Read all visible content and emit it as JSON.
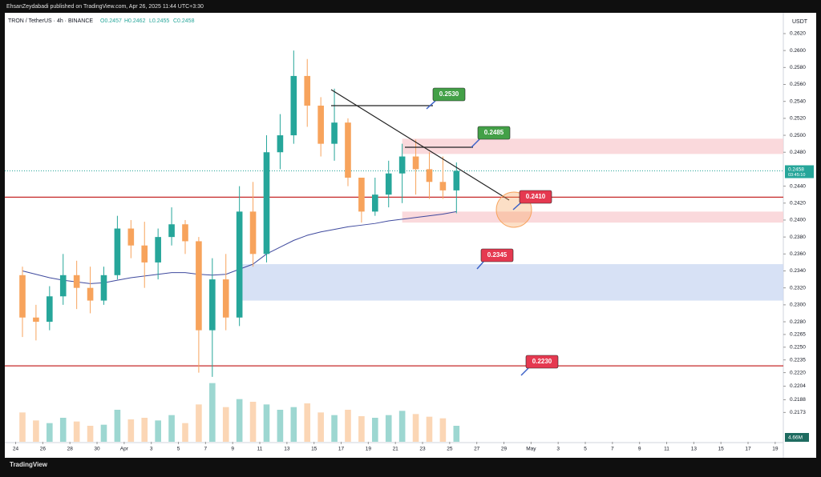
{
  "header": {
    "publisher": "EhsanZeydabadi published on TradingView.com, Apr 26, 2025 11:44 UTC+3:30",
    "brand": "TradingView"
  },
  "chart_data": {
    "type": "candlestick",
    "symbol": "TRON / TetherUS · 4h · BINANCE",
    "ohlc_legend": [
      "O0.2457",
      "H0.2462",
      "L0.2455",
      "C0.2458"
    ],
    "currency": "USDT",
    "t": [
      0,
      1,
      2,
      3,
      4,
      5,
      6,
      7,
      8,
      9,
      10,
      11,
      12,
      13,
      14,
      15,
      16,
      17,
      18,
      19,
      20,
      21,
      22,
      23,
      24,
      25,
      26,
      27,
      28,
      29,
      30,
      31,
      32
    ],
    "open": [
      0.2335,
      0.2285,
      0.228,
      0.231,
      0.2335,
      0.232,
      0.2305,
      0.2335,
      0.239,
      0.237,
      0.235,
      0.238,
      0.2395,
      0.2375,
      0.227,
      0.233,
      0.2285,
      0.241,
      0.236,
      0.248,
      0.25,
      0.257,
      0.2535,
      0.249,
      0.2515,
      0.245,
      0.241,
      0.243,
      0.2455,
      0.2475,
      0.246,
      0.2445,
      0.2435
    ],
    "high": [
      0.2345,
      0.23,
      0.2322,
      0.236,
      0.2352,
      0.2345,
      0.2345,
      0.2405,
      0.24,
      0.2398,
      0.239,
      0.2415,
      0.24,
      0.238,
      0.2355,
      0.236,
      0.244,
      0.2445,
      0.25,
      0.2525,
      0.26,
      0.259,
      0.2545,
      0.2555,
      0.252,
      0.245,
      0.245,
      0.247,
      0.249,
      0.2495,
      0.248,
      0.2475,
      0.2468
    ],
    "low": [
      0.2262,
      0.2258,
      0.227,
      0.23,
      0.2295,
      0.229,
      0.23,
      0.233,
      0.2355,
      0.232,
      0.233,
      0.237,
      0.236,
      0.222,
      0.2215,
      0.227,
      0.2275,
      0.2345,
      0.235,
      0.246,
      0.249,
      0.251,
      0.2475,
      0.247,
      0.244,
      0.2397,
      0.2405,
      0.2415,
      0.242,
      0.243,
      0.2425,
      0.2425,
      0.2408
    ],
    "close": [
      0.2285,
      0.228,
      0.231,
      0.2335,
      0.232,
      0.2305,
      0.2335,
      0.239,
      0.237,
      0.235,
      0.238,
      0.2395,
      0.2375,
      0.227,
      0.233,
      0.2285,
      0.241,
      0.236,
      0.248,
      0.25,
      0.257,
      0.2535,
      0.249,
      0.2515,
      0.245,
      0.241,
      0.243,
      0.2455,
      0.2475,
      0.246,
      0.2445,
      0.2435,
      0.2458
    ],
    "volume": [
      55,
      40,
      35,
      45,
      38,
      30,
      32,
      60,
      42,
      45,
      40,
      50,
      35,
      70,
      110,
      65,
      80,
      75,
      70,
      60,
      65,
      72,
      55,
      50,
      60,
      48,
      45,
      50,
      58,
      52,
      47,
      44,
      30
    ],
    "vlim": [
      0,
      120
    ],
    "ma": [
      0.234,
      0.2336,
      0.2332,
      0.2329,
      0.2327,
      0.2325,
      0.2326,
      0.2329,
      0.2332,
      0.2334,
      0.2336,
      0.2338,
      0.2338,
      0.2336,
      0.2335,
      0.2336,
      0.2342,
      0.2348,
      0.236,
      0.2368,
      0.2376,
      0.2382,
      0.2386,
      0.2389,
      0.2392,
      0.2394,
      0.2396,
      0.2399,
      0.2401,
      0.2403,
      0.2405,
      0.2407,
      0.241
    ],
    "ylim": [
      0.21384,
      0.26313
    ],
    "yticks": [
      {
        "value": 0.262,
        "label": "0.2620"
      },
      {
        "value": 0.26,
        "label": "0.2600"
      },
      {
        "value": 0.258,
        "label": "0.2580"
      },
      {
        "value": 0.256,
        "label": "0.2560"
      },
      {
        "value": 0.254,
        "label": "0.2540"
      },
      {
        "value": 0.252,
        "label": "0.2520"
      },
      {
        "value": 0.25,
        "label": "0.2500"
      },
      {
        "value": 0.248,
        "label": "0.2480"
      },
      {
        "value": 0.244,
        "label": "0.2440"
      },
      {
        "value": 0.242,
        "label": "0.2420"
      },
      {
        "value": 0.24,
        "label": "0.2400"
      },
      {
        "value": 0.238,
        "label": "0.2380"
      },
      {
        "value": 0.236,
        "label": "0.2360"
      },
      {
        "value": 0.234,
        "label": "0.2340"
      },
      {
        "value": 0.232,
        "label": "0.2320"
      },
      {
        "value": 0.23,
        "label": "0.2300"
      },
      {
        "value": 0.228,
        "label": "0.2280"
      },
      0.2265,
      {
        "value": 0.225,
        "label": "0.2250"
      },
      0.2235,
      {
        "value": 0.222,
        "label": "0.2220"
      },
      0.2204,
      0.2188,
      0.2173
    ],
    "xlim": [
      -0.8,
      56.6
    ],
    "xticks": [
      {
        "value": 0,
        "label": "24"
      },
      {
        "value": 2,
        "label": "26"
      },
      {
        "value": 4,
        "label": "28"
      },
      {
        "value": 6,
        "label": "30"
      },
      {
        "value": 8,
        "label": "Apr"
      },
      {
        "value": 10,
        "label": "3"
      },
      {
        "value": 12,
        "label": "5"
      },
      {
        "value": 14,
        "label": "7"
      },
      {
        "value": 16,
        "label": "9"
      },
      {
        "value": 18,
        "label": "11"
      },
      {
        "value": 20,
        "label": "13"
      },
      {
        "value": 22,
        "label": "15"
      },
      {
        "value": 24,
        "label": "17"
      },
      {
        "value": 26,
        "label": "19"
      },
      {
        "value": 28,
        "label": "21"
      },
      {
        "value": 30,
        "label": "23"
      },
      {
        "value": 32,
        "label": "25"
      },
      {
        "value": 34,
        "label": "27"
      },
      {
        "value": 36,
        "label": "29"
      },
      {
        "value": 38,
        "label": "May"
      },
      {
        "value": 40,
        "label": "3"
      },
      {
        "value": 42,
        "label": "5"
      },
      {
        "value": 44,
        "label": "7"
      },
      {
        "value": 46,
        "label": "9"
      },
      {
        "value": 48,
        "label": "11"
      },
      {
        "value": 50,
        "label": "13"
      },
      {
        "value": 52,
        "label": "15"
      },
      {
        "value": 54,
        "label": "17"
      },
      {
        "value": 56,
        "label": "19"
      }
    ],
    "up_color": "#26a69a",
    "down_color": "#f7a35c",
    "ma_color": "#3f4a9e",
    "levels": [
      {
        "value": 0.2427,
        "color": "#c62828"
      },
      {
        "value": 0.2228,
        "color": "#c62828"
      }
    ],
    "zones": [
      {
        "range": [
          0.2478,
          0.2496
        ],
        "color": "#f9cfd3"
      },
      {
        "range": [
          0.2397,
          0.241
        ],
        "color": "#f9cfd3"
      },
      {
        "range": [
          0.2305,
          0.2348
        ],
        "color": "#cdd9f2"
      }
    ],
    "last_price": {
      "value": 0.2458,
      "label": "0.2458",
      "countdown": "03:45:10"
    },
    "last_volume": "4.66M",
    "annotations": [
      {
        "text": "0.2530",
        "color": "#43a047"
      },
      {
        "text": "0.2485",
        "color": "#43a047"
      },
      {
        "text": "0.2410",
        "color": "#e53950"
      },
      {
        "text": "0.2345",
        "color": "#e53950"
      },
      {
        "text": "0.2230",
        "color": "#e53950"
      }
    ]
  }
}
